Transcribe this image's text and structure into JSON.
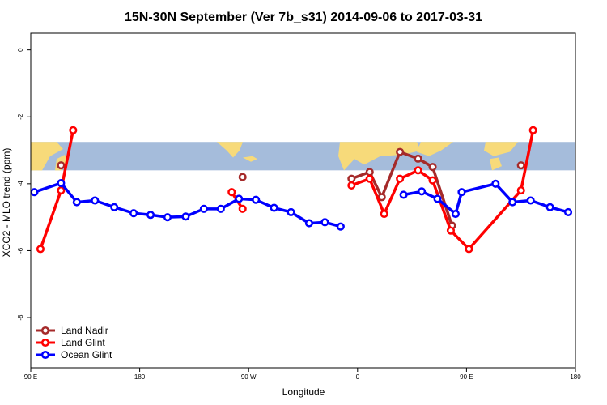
{
  "chart_data": {
    "type": "line",
    "title": "15N-30N September (Ver 7b_s31)   2014-09-06 to 2017-03-31",
    "xlabel": "Longitude",
    "ylabel": "XCO2 - MLO trend (ppm)",
    "xlim": [
      90,
      540
    ],
    "ylim": [
      -9.5,
      0.5
    ],
    "x_ticks": [
      {
        "value": 90,
        "label": "90 E"
      },
      {
        "value": 180,
        "label": "180"
      },
      {
        "value": 270,
        "label": "90 W"
      },
      {
        "value": 360,
        "label": "0"
      },
      {
        "value": 450,
        "label": "90 E"
      },
      {
        "value": 540,
        "label": "180"
      }
    ],
    "y_ticks": [
      {
        "value": 0,
        "label": "0"
      },
      {
        "value": -2,
        "label": "-2"
      },
      {
        "value": -4,
        "label": "-4"
      },
      {
        "value": -6,
        "label": "-6"
      },
      {
        "value": -8,
        "label": "-8"
      }
    ],
    "map_strip": {
      "y_top": -2.75,
      "y_bottom": -3.6,
      "ocean_color": "#a5bcdb",
      "land_color": "#f7da7a"
    },
    "legend_position": "bottom-left",
    "series": [
      {
        "name": "Land Nadir",
        "color": "#a52a2a",
        "segments": [
          [
            [
              115,
              -3.45
            ]
          ],
          [
            [
              265,
              -3.8
            ]
          ],
          [
            [
              355,
              -3.85
            ],
            [
              370,
              -3.65
            ],
            [
              380,
              -4.4
            ],
            [
              395,
              -3.05
            ],
            [
              410,
              -3.25
            ],
            [
              422,
              -3.5
            ],
            [
              438,
              -5.25
            ]
          ],
          [
            [
              495,
              -3.45
            ]
          ]
        ]
      },
      {
        "name": "Land Glint",
        "color": "#ff0000",
        "segments": [
          [
            [
              98,
              -5.95
            ],
            [
              115,
              -4.2
            ],
            [
              125,
              -2.4
            ]
          ],
          [
            [
              256,
              -4.25
            ],
            [
              265,
              -4.75
            ]
          ],
          [
            [
              355,
              -4.05
            ],
            [
              370,
              -3.85
            ],
            [
              382,
              -4.9
            ],
            [
              395,
              -3.85
            ],
            [
              410,
              -3.6
            ],
            [
              422,
              -3.9
            ],
            [
              437,
              -5.4
            ],
            [
              452,
              -5.95
            ],
            [
              495,
              -4.2
            ],
            [
              505,
              -2.4
            ]
          ]
        ]
      },
      {
        "name": "Ocean Glint",
        "color": "#0000ff",
        "segments": [
          [
            [
              93,
              -4.25
            ],
            [
              115,
              -3.98
            ],
            [
              128,
              -4.55
            ],
            [
              143,
              -4.5
            ],
            [
              159,
              -4.7
            ],
            [
              175,
              -4.88
            ],
            [
              189,
              -4.93
            ],
            [
              203,
              -5.0
            ],
            [
              218,
              -4.98
            ],
            [
              233,
              -4.75
            ],
            [
              247,
              -4.75
            ],
            [
              262,
              -4.45
            ],
            [
              276,
              -4.48
            ],
            [
              291,
              -4.72
            ],
            [
              305,
              -4.85
            ],
            [
              320,
              -5.18
            ],
            [
              333,
              -5.15
            ],
            [
              346,
              -5.28
            ]
          ],
          [
            [
              398,
              -4.33
            ],
            [
              413,
              -4.23
            ],
            [
              426,
              -4.45
            ],
            [
              441,
              -4.9
            ],
            [
              446,
              -4.25
            ],
            [
              474,
              -4.0
            ],
            [
              488,
              -4.55
            ],
            [
              503,
              -4.5
            ],
            [
              519,
              -4.7
            ],
            [
              534,
              -4.85
            ]
          ]
        ]
      }
    ]
  }
}
